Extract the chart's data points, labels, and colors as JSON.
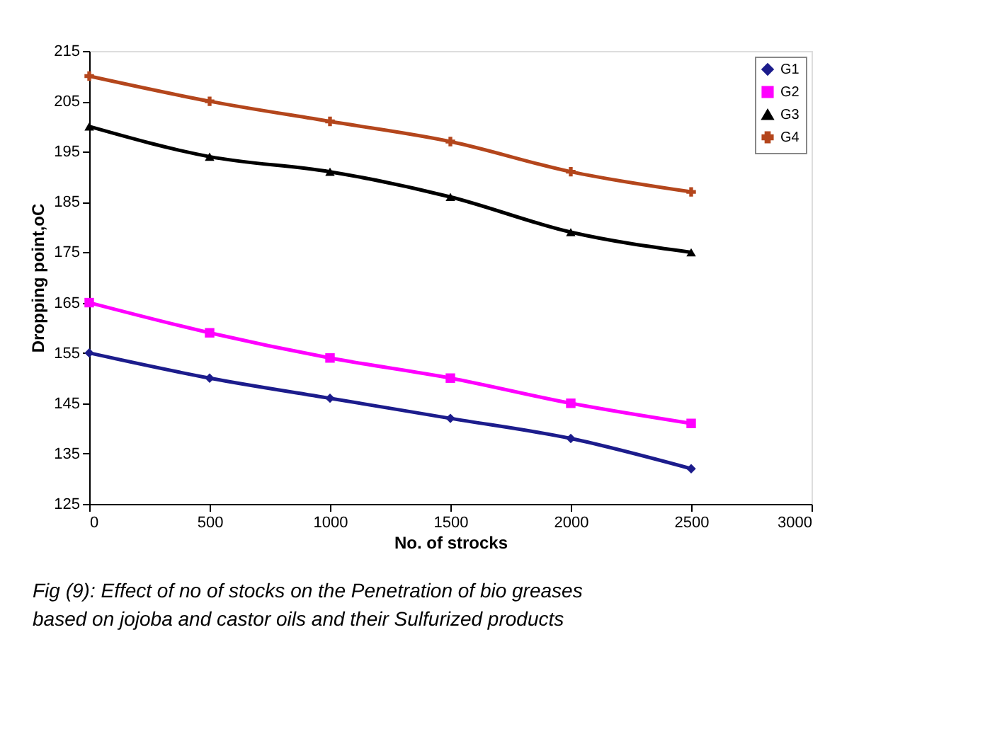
{
  "chart_data": {
    "type": "line",
    "xlabel": "No. of strocks",
    "ylabel": "Dropping point,oC",
    "x": [
      0,
      500,
      1000,
      1500,
      2000,
      2500
    ],
    "series": [
      {
        "name": "G1",
        "color": "#1c1c8c",
        "marker": "diamond",
        "values": [
          155,
          150,
          146,
          142,
          138,
          132
        ]
      },
      {
        "name": "G2",
        "color": "#ff00ff",
        "marker": "square",
        "values": [
          165,
          159,
          154,
          150,
          145,
          141
        ]
      },
      {
        "name": "G3",
        "color": "#000000",
        "marker": "triangle",
        "values": [
          200,
          194,
          191,
          186,
          179,
          175
        ]
      },
      {
        "name": "G4",
        "color": "#b4461c",
        "marker": "cross",
        "values": [
          210,
          205,
          201,
          197,
          191,
          187
        ]
      }
    ],
    "xlim": [
      0,
      3000
    ],
    "xticks": [
      0,
      500,
      1000,
      1500,
      2000,
      2500,
      3000
    ],
    "ylim": [
      125,
      215
    ],
    "yticks": [
      125,
      135,
      145,
      155,
      165,
      175,
      185,
      195,
      205,
      215
    ],
    "grid": false,
    "legend": "top right",
    "line_style": "solid",
    "annotations": [
      "Fig (9): Effect of no of stocks on the Penetration of bio greases",
      "based on jojoba and castor oils and their Sulfurized products"
    ]
  }
}
